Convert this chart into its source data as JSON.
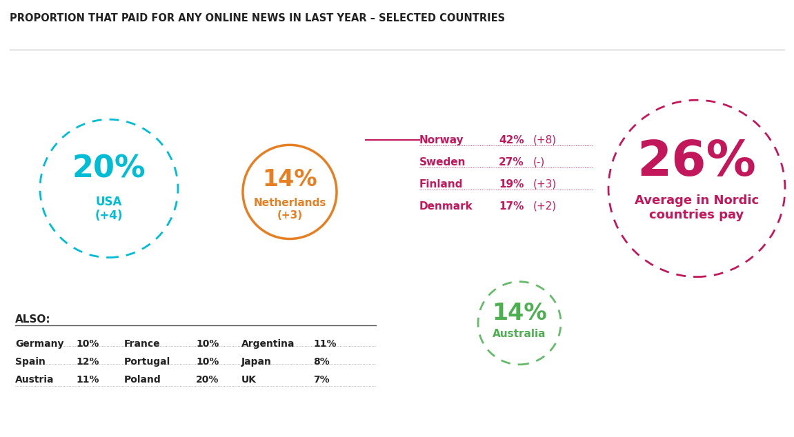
{
  "title": "PROPORTION THAT PAID FOR ANY ONLINE NEWS IN LAST YEAR – SELECTED COUNTRIES",
  "title_fontsize": 10.5,
  "background_color": "#ffffff",
  "map_bg_color": "#e8e8e8",
  "map_color": "#c8c8c8",
  "map_edge_color": "#ffffff",
  "usa_color": "#00bcd4",
  "norway_color": "#c2185b",
  "australia_color": "#66bb6a",
  "usa_pct": "20%",
  "usa_sub1": "USA",
  "usa_sub2": "(+4)",
  "usa_circle_color": "#00bcd4",
  "netherlands_pct": "14%",
  "netherlands_sub1": "Netherlands",
  "netherlands_sub2": "(+3)",
  "netherlands_circle_color": "#e67e22",
  "nordic_pct": "26%",
  "nordic_sub": "Average in Nordic\ncountries pay",
  "nordic_circle_color": "#c2185b",
  "australia_pct": "14%",
  "australia_sub": "Australia",
  "australia_circle_color": "#66bb6a",
  "nordic_table": [
    [
      "Norway",
      "42%",
      "(+8)"
    ],
    [
      "Sweden",
      "27%",
      "(-)"
    ],
    [
      "Finland",
      "19%",
      "(+3)"
    ],
    [
      "Denmark",
      "17%",
      "(+2)"
    ]
  ],
  "also_table": {
    "col1": [
      [
        "Germany",
        "10%"
      ],
      [
        "Spain",
        "12%"
      ],
      [
        "Austria",
        "11%"
      ]
    ],
    "col2": [
      [
        "France",
        "10%"
      ],
      [
        "Portugal",
        "10%"
      ],
      [
        "Poland",
        "20%"
      ]
    ],
    "col3": [
      [
        "Argentina",
        "11%"
      ],
      [
        "Japan",
        "8%"
      ],
      [
        "UK",
        "7%"
      ]
    ]
  },
  "text_dark": "#222222",
  "text_magenta": "#c2185b",
  "text_teal": "#00bcd4",
  "text_orange": "#e67e22",
  "text_green": "#4caf50"
}
